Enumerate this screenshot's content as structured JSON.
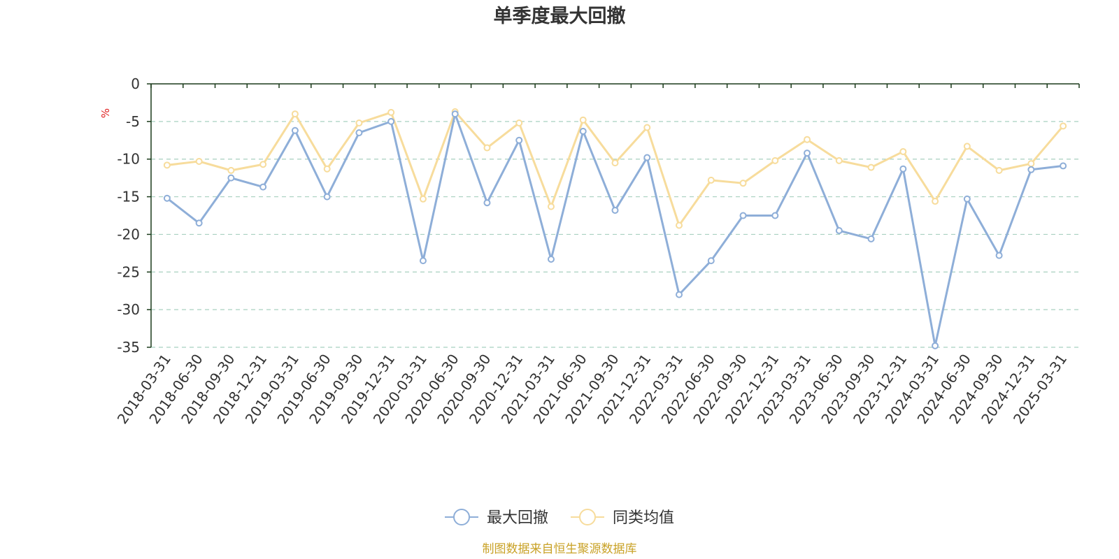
{
  "chart_data": {
    "type": "line",
    "title": "单季度最大回撤",
    "unit": "%",
    "source": "制图数据来自恒生聚源数据库",
    "ylim": [
      -35,
      0
    ],
    "yticks": [
      0,
      -5,
      -10,
      -15,
      -20,
      -25,
      -30,
      -35
    ],
    "grid": "horizontal dashed",
    "legend_position": "bottom-center",
    "categories": [
      "2018-03-31",
      "2018-06-30",
      "2018-09-30",
      "2018-12-31",
      "2019-03-31",
      "2019-06-30",
      "2019-09-30",
      "2019-12-31",
      "2020-03-31",
      "2020-06-30",
      "2020-09-30",
      "2020-12-31",
      "2021-03-31",
      "2021-06-30",
      "2021-09-30",
      "2021-12-31",
      "2022-03-31",
      "2022-06-30",
      "2022-09-30",
      "2022-12-31",
      "2023-03-31",
      "2023-06-30",
      "2023-09-30",
      "2023-12-31",
      "2024-03-31",
      "2024-06-30",
      "2024-09-30",
      "2024-12-31",
      "2025-03-31"
    ],
    "series": [
      {
        "name": "最大回撤",
        "color": "#8eaed8",
        "values": [
          -15.2,
          -18.5,
          -12.5,
          -13.7,
          -6.2,
          -15.0,
          -6.5,
          -5.0,
          -23.5,
          -4.0,
          -15.8,
          -7.5,
          -23.3,
          -6.3,
          -16.8,
          -9.8,
          -28.0,
          -23.5,
          -17.5,
          -17.5,
          -9.2,
          -19.5,
          -20.6,
          -11.3,
          -34.8,
          -15.3,
          -22.8,
          -11.4,
          -10.9
        ]
      },
      {
        "name": "同类均值",
        "color": "#f7dc9c",
        "values": [
          -10.8,
          -10.3,
          -11.5,
          -10.7,
          -4.0,
          -11.3,
          -5.2,
          -3.8,
          -15.3,
          -3.7,
          -8.5,
          -5.2,
          -16.3,
          -4.8,
          -10.5,
          -5.8,
          -18.8,
          -12.8,
          -13.2,
          -10.2,
          -7.4,
          -10.2,
          -11.1,
          -9.0,
          -15.6,
          -8.3,
          -11.5,
          -10.6,
          -5.6
        ]
      }
    ],
    "colors": {
      "axis": "#1a3a1a",
      "grid": "#a8d0c0",
      "unit": "#e02020",
      "source": "#c9a227"
    }
  }
}
